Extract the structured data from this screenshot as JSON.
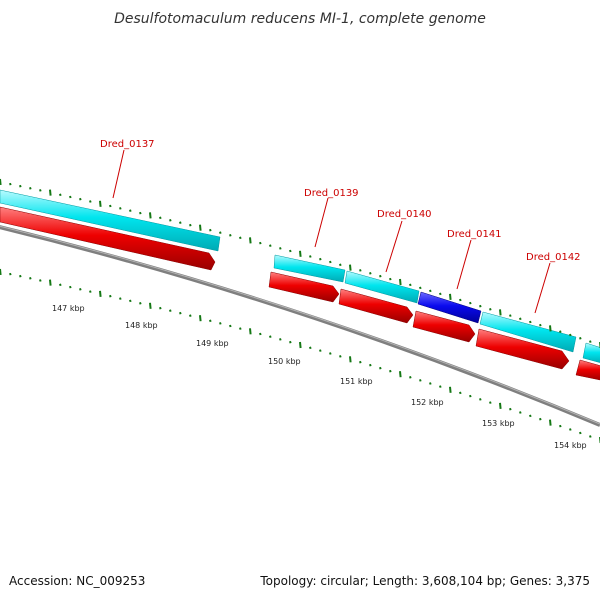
{
  "title": "Desulfotomaculum reducens MI-1, complete genome",
  "footer": {
    "accession": "Accession: NC_009253",
    "summary": "Topology: circular; Length: 3,608,104 bp; Genes: 3,375"
  },
  "colors": {
    "cds_forward": "#00e5ee",
    "cds_forward_alt": "#0a0aee",
    "cds_reverse": "#ee0000",
    "backbone": "#888888",
    "ticks": "#157815",
    "gene_label": "#cc0000"
  },
  "gene_labels": [
    "Dred_0137",
    "Dred_0139",
    "Dred_0140",
    "Dred_0141",
    "Dred_0142"
  ],
  "scale_labels": [
    "147 kbp",
    "148 kbp",
    "149 kbp",
    "150 kbp",
    "151 kbp",
    "152 kbp",
    "153 kbp",
    "154 kbp"
  ]
}
